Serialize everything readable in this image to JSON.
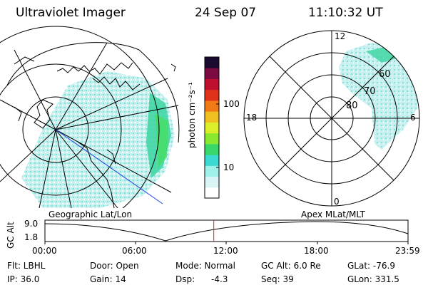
{
  "header": {
    "title": "Ultraviolet Imager",
    "date": "24 Sep 07",
    "time": "11:10:32 UT"
  },
  "left_panel": {
    "label": "Geographic Lat/Lon"
  },
  "right_panel": {
    "label": "Apex MLat/MLT",
    "mlt_labels": {
      "top": "12",
      "left": "18",
      "right": "6",
      "bottom": "0"
    },
    "lat_labels": [
      "60",
      "70",
      "80"
    ]
  },
  "colorbar": {
    "unit_label": "photon cm⁻²s⁻¹",
    "ticks": [
      "100",
      "10"
    ],
    "scale": "log",
    "colors": [
      "#ffffff",
      "#d8f4f4",
      "#9ff0e8",
      "#3cd9d2",
      "#39d66a",
      "#8ae830",
      "#dced2a",
      "#f0c022",
      "#f07a15",
      "#e0321a",
      "#c01030",
      "#7a0a40",
      "#1a0a30"
    ]
  },
  "timeline": {
    "y_label": "GC Alt",
    "y_ticks": [
      "9.0",
      "1.8"
    ],
    "x_ticks": [
      "00:00",
      "06:00",
      "12:00",
      "18:00",
      "23:59"
    ],
    "current_time_fraction": 0.465,
    "marker_color": "#e02020"
  },
  "info": {
    "row1": {
      "filter": "Flt: LBHL",
      "door": "Door: Open",
      "mode": "Mode: Normal",
      "gc_alt": "GC Alt: 6.0 Re",
      "glat": "GLat: -76.9"
    },
    "row2": {
      "ip": "IP: 36.0",
      "gain": "Gain: 14",
      "dsp_label": "Dsp:",
      "dsp_value": "-4.3",
      "seq": "Seq: 39",
      "glon": "GLon: 331.5"
    }
  }
}
